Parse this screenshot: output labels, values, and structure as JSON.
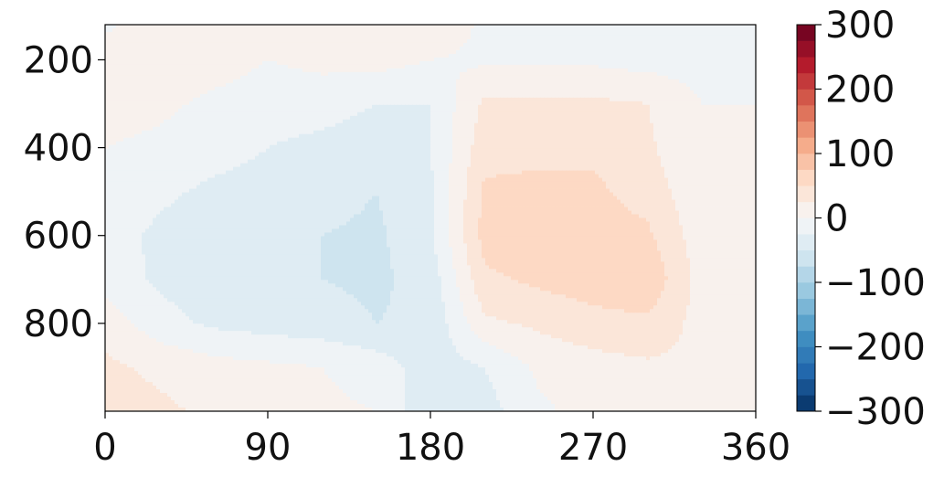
{
  "chart_data": {
    "type": "heatmap",
    "title": "",
    "xlabel": "",
    "ylabel": "",
    "x_ticks": [
      "0",
      "90",
      "180",
      "270",
      "360"
    ],
    "y_ticks": [
      "200",
      "400",
      "600",
      "800"
    ],
    "xlim": [
      0,
      360
    ],
    "ylim": [
      1000,
      120
    ],
    "y_inverted": true,
    "colormap": "RdBu_r",
    "colorbar": {
      "ticks": [
        "300",
        "200",
        "100",
        "0",
        "−100",
        "−200",
        "−300"
      ],
      "range": [
        -300,
        300
      ],
      "levels": 24
    },
    "x": [
      0,
      30,
      60,
      90,
      120,
      150,
      180,
      210,
      240,
      270,
      300,
      330,
      360
    ],
    "y": [
      120,
      200,
      300,
      400,
      500,
      600,
      700,
      800,
      900,
      1000
    ],
    "z": [
      [
        -5,
        15,
        20,
        15,
        10,
        20,
        20,
        -5,
        -10,
        -10,
        -10,
        -10,
        -10
      ],
      [
        15,
        15,
        10,
        0,
        5,
        10,
        0,
        -5,
        -5,
        -5,
        -10,
        -10,
        -5
      ],
      [
        10,
        5,
        -5,
        -10,
        -10,
        -25,
        -25,
        30,
        30,
        30,
        25,
        0,
        0
      ],
      [
        0,
        -5,
        -15,
        -25,
        -35,
        -45,
        -25,
        40,
        45,
        45,
        30,
        0,
        0
      ],
      [
        -5,
        -20,
        -30,
        -35,
        -40,
        -50,
        -30,
        55,
        55,
        55,
        40,
        5,
        5
      ],
      [
        -15,
        -30,
        -40,
        -40,
        -50,
        -55,
        -30,
        60,
        65,
        60,
        55,
        10,
        5
      ],
      [
        -10,
        -30,
        -40,
        -40,
        -50,
        -55,
        -40,
        45,
        55,
        65,
        70,
        15,
        10
      ],
      [
        15,
        -15,
        -30,
        -35,
        -40,
        -50,
        -45,
        20,
        30,
        40,
        45,
        15,
        10
      ],
      [
        30,
        20,
        10,
        5,
        0,
        -10,
        -40,
        -25,
        5,
        15,
        20,
        20,
        15
      ],
      [
        35,
        30,
        20,
        10,
        5,
        0,
        -45,
        -35,
        -5,
        10,
        20,
        20,
        15
      ]
    ]
  }
}
